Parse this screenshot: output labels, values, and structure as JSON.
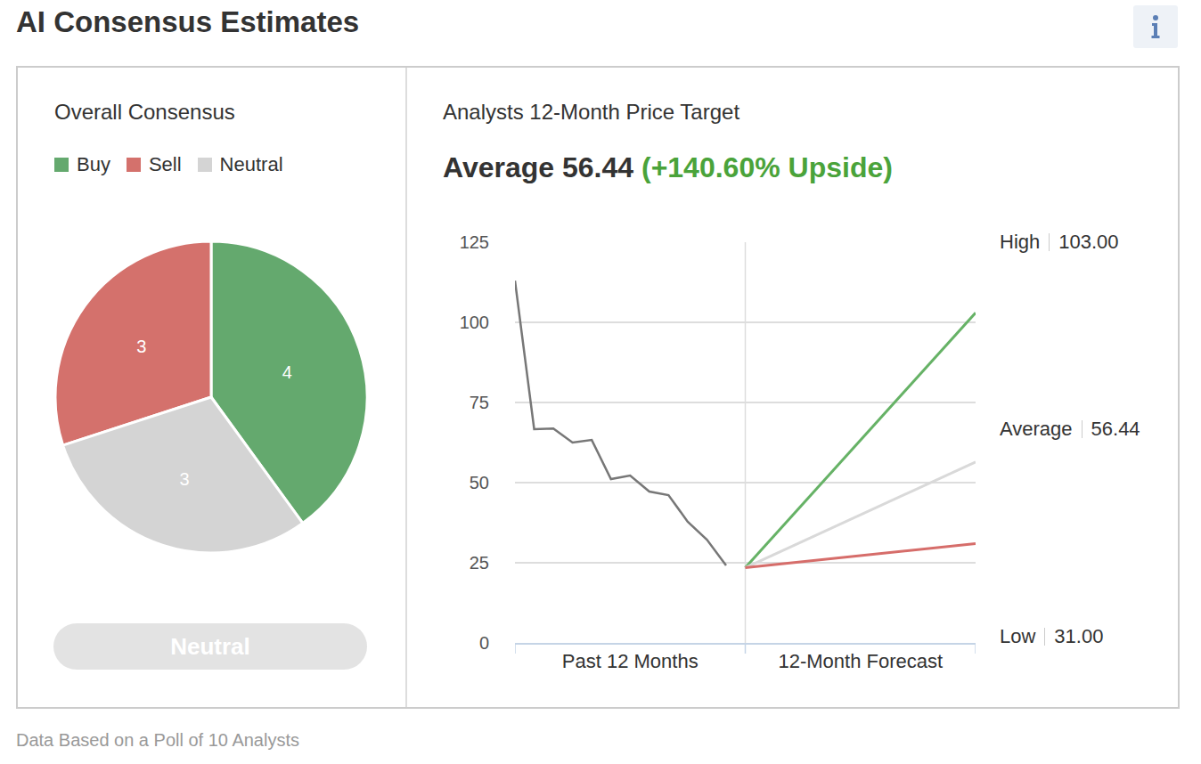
{
  "header": {
    "title": "AI Consensus Estimates"
  },
  "footer": "Data Based on a Poll of 10 Analysts",
  "chart_data": [
    {
      "type": "pie",
      "title": "Overall Consensus",
      "categories": [
        "Buy",
        "Sell",
        "Neutral"
      ],
      "values": [
        4,
        3,
        3
      ],
      "colors": [
        "#64a96e",
        "#d4716c",
        "#d4d4d4"
      ],
      "data_labels": true,
      "legend": "top",
      "consensus": "Neutral"
    },
    {
      "type": "line",
      "title": "Analysts 12-Month Price Target",
      "subtitle": {
        "text": "Average 56.44",
        "upside": "(+140.60% Upside)"
      },
      "xlim": [
        0,
        24
      ],
      "xticks": [
        {
          "value": 6,
          "label": "Past 12 Months"
        },
        {
          "value": 18,
          "label": "12-Month Forecast"
        }
      ],
      "ylim": [
        0,
        125
      ],
      "yticks": [
        0,
        25,
        50,
        75,
        100,
        125
      ],
      "grid": true,
      "series": [
        {
          "color": "#777777",
          "x": [
            0,
            1,
            2,
            3,
            4,
            5,
            6,
            7,
            8,
            9,
            10,
            11
          ],
          "values": [
            113,
            66.7,
            66.9,
            62.5,
            63.3,
            51.1,
            52.2,
            47.2,
            46.1,
            37.8,
            32.2,
            24.2
          ]
        },
        {
          "name": "High",
          "color": "#66b266",
          "x": [
            12,
            24
          ],
          "values": [
            23.46,
            103
          ],
          "value_labels": [
            null,
            "103.00"
          ]
        },
        {
          "name": "Average",
          "color": "#d9d9d9",
          "x": [
            12,
            24
          ],
          "values": [
            23.46,
            56.44
          ],
          "value_labels": [
            null,
            "56.44"
          ]
        },
        {
          "name": "Low",
          "color": "#d66d6a",
          "x": [
            12,
            24
          ],
          "values": [
            23.46,
            31
          ],
          "value_labels": [
            null,
            "31.00"
          ]
        }
      ]
    }
  ]
}
